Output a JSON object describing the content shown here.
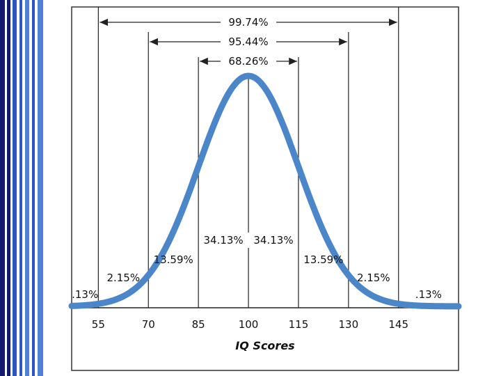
{
  "colors": {
    "curve": "#4a86c8",
    "stripe_dark": "#141a6e",
    "stripe_mid": "#2e55c4",
    "stripe_light": "#4f82d6",
    "rule": "#222222",
    "frame": "#333333"
  },
  "chart_data": {
    "type": "line",
    "title": "",
    "xlabel": "IQ Scores",
    "ylabel": "",
    "mean": 100,
    "sd": 15,
    "x_ticks": [
      55,
      70,
      85,
      100,
      115,
      130,
      145
    ],
    "xlim": [
      47,
      163
    ],
    "ranges": [
      {
        "label": "68.26%",
        "from": 85,
        "to": 115
      },
      {
        "label": "95.44%",
        "from": 70,
        "to": 130
      },
      {
        "label": "99.74%",
        "from": 55,
        "to": 145
      }
    ],
    "segments": [
      {
        "label": ".13%",
        "x": 51
      },
      {
        "label": "2.15%",
        "x": 62.5
      },
      {
        "label": "13.59%",
        "x": 77.5
      },
      {
        "label": "34.13%",
        "x": 92.5
      },
      {
        "label": "34.13%",
        "x": 107.5
      },
      {
        "label": "13.59%",
        "x": 122.5
      },
      {
        "label": "2.15%",
        "x": 137.5
      },
      {
        "label": ".13%",
        "x": 154
      }
    ]
  }
}
